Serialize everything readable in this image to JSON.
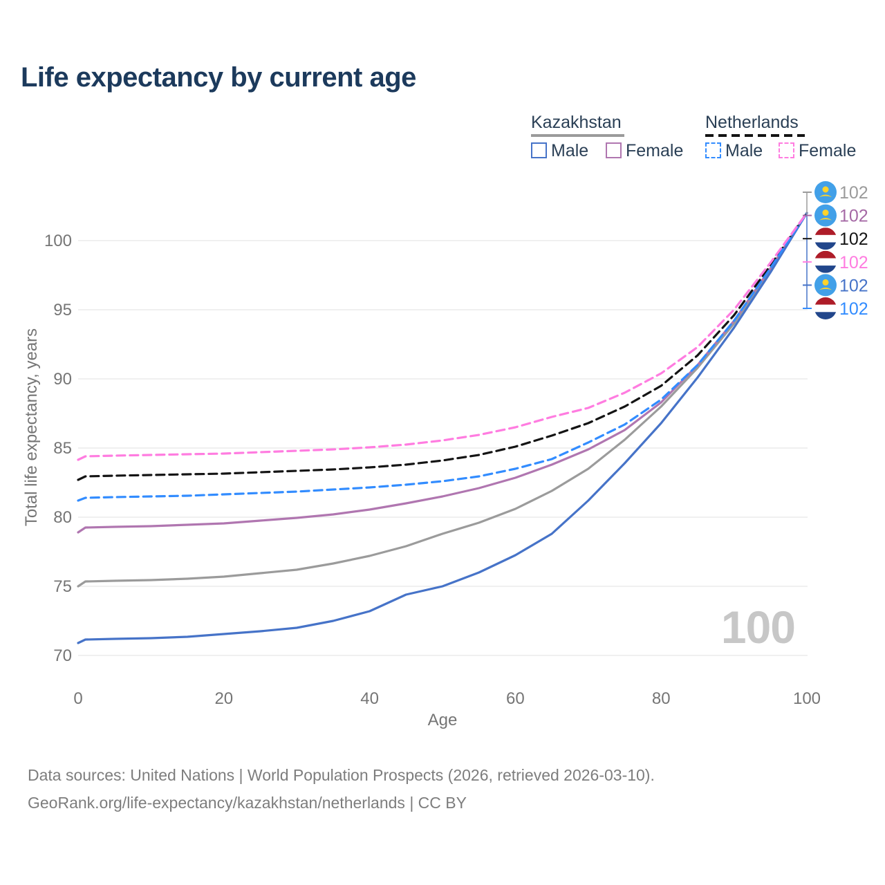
{
  "header": {
    "title": "Life expectancy by current age"
  },
  "legend": {
    "groups": [
      {
        "name": "Kazakhstan",
        "line_style": "solid",
        "underline_color": "#9b9b9b",
        "items": [
          {
            "label": "Male",
            "color": "#4673c8"
          },
          {
            "label": "Female",
            "color": "#b076b0"
          }
        ]
      },
      {
        "name": "Netherlands",
        "line_style": "dashed",
        "underline_color": "#141414",
        "items": [
          {
            "label": "Male",
            "color": "#328cff"
          },
          {
            "label": "Female",
            "color": "#ff7ce0"
          }
        ]
      }
    ]
  },
  "chart_data": {
    "type": "line",
    "title": "Life expectancy by current age",
    "xlabel": "Age",
    "ylabel": "Total life expectancy, years",
    "xlim": [
      0,
      100
    ],
    "ylim": [
      69,
      103
    ],
    "xticks": [
      0,
      20,
      40,
      60,
      80,
      100
    ],
    "yticks": [
      70,
      75,
      80,
      85,
      90,
      95,
      100
    ],
    "grid": "horizontal",
    "legend_position": "top-right",
    "age_watermark": "100",
    "x": [
      0,
      1,
      5,
      10,
      15,
      20,
      25,
      30,
      35,
      40,
      45,
      50,
      55,
      60,
      65,
      70,
      75,
      80,
      85,
      90,
      95,
      100
    ],
    "series": [
      {
        "name": "Kazakhstan Both sexes",
        "slug": "kazakhstan-both",
        "color": "#9b9b9b",
        "dash": false,
        "values": [
          75.0,
          75.35,
          75.4,
          75.45,
          75.55,
          75.7,
          75.95,
          76.2,
          76.65,
          77.2,
          77.9,
          78.8,
          79.6,
          80.6,
          81.9,
          83.5,
          85.6,
          88.0,
          90.8,
          94.0,
          97.9,
          102
        ]
      },
      {
        "name": "Kazakhstan Female",
        "slug": "kazakhstan-female",
        "color": "#b076b0",
        "dash": false,
        "values": [
          78.9,
          79.25,
          79.3,
          79.35,
          79.45,
          79.55,
          79.75,
          79.95,
          80.2,
          80.55,
          81.0,
          81.5,
          82.1,
          82.85,
          83.8,
          84.9,
          86.3,
          88.3,
          91.0,
          94.2,
          98.0,
          102
        ]
      },
      {
        "name": "Kazakhstan Male",
        "slug": "kazakhstan-male",
        "color": "#4673c8",
        "dash": false,
        "values": [
          70.9,
          71.15,
          71.2,
          71.25,
          71.35,
          71.55,
          71.75,
          72.0,
          72.5,
          73.2,
          74.4,
          75.0,
          76.0,
          77.25,
          78.8,
          81.2,
          83.9,
          86.8,
          90.1,
          93.7,
          97.7,
          102
        ]
      },
      {
        "name": "Netherlands Both sexes",
        "slug": "netherlands-both",
        "color": "#141414",
        "dash": true,
        "values": [
          82.7,
          82.95,
          83.0,
          83.05,
          83.1,
          83.15,
          83.25,
          83.35,
          83.45,
          83.6,
          83.8,
          84.1,
          84.5,
          85.1,
          85.9,
          86.8,
          88.0,
          89.5,
          91.7,
          94.6,
          98.2,
          102
        ]
      },
      {
        "name": "Netherlands Male",
        "slug": "netherlands-male",
        "color": "#328cff",
        "dash": true,
        "values": [
          81.2,
          81.4,
          81.45,
          81.5,
          81.55,
          81.65,
          81.75,
          81.85,
          82.0,
          82.15,
          82.35,
          82.6,
          82.95,
          83.5,
          84.2,
          85.4,
          86.7,
          88.5,
          91.0,
          94.2,
          98.0,
          102
        ]
      },
      {
        "name": "Netherlands Female",
        "slug": "netherlands-female",
        "color": "#ff7ce0",
        "dash": true,
        "values": [
          84.15,
          84.4,
          84.45,
          84.5,
          84.55,
          84.6,
          84.7,
          84.8,
          84.9,
          85.05,
          85.25,
          85.55,
          85.95,
          86.5,
          87.25,
          87.9,
          89.0,
          90.4,
          92.3,
          95.0,
          98.4,
          102
        ]
      }
    ],
    "end_labels": [
      {
        "flag": "kz",
        "value": "102",
        "color": "#9b9b9b",
        "series": "kazakhstan-both"
      },
      {
        "flag": "kz",
        "value": "102",
        "color": "#a569a5",
        "series": "kazakhstan-female"
      },
      {
        "flag": "nl",
        "value": "102",
        "color": "#141414",
        "series": "netherlands-both"
      },
      {
        "flag": "nl",
        "value": "102",
        "color": "#ff7ce0",
        "series": "netherlands-female"
      },
      {
        "flag": "kz",
        "value": "102",
        "color": "#4673c8",
        "series": "kazakhstan-male"
      },
      {
        "flag": "nl",
        "value": "102",
        "color": "#328cff",
        "series": "netherlands-male"
      }
    ]
  },
  "footer": {
    "line1": "Data sources: United Nations | World Population Prospects (2026, retrieved 2026-03-10).",
    "line2": "GeoRank.org/life-expectancy/kazakhstan/netherlands | CC BY"
  }
}
